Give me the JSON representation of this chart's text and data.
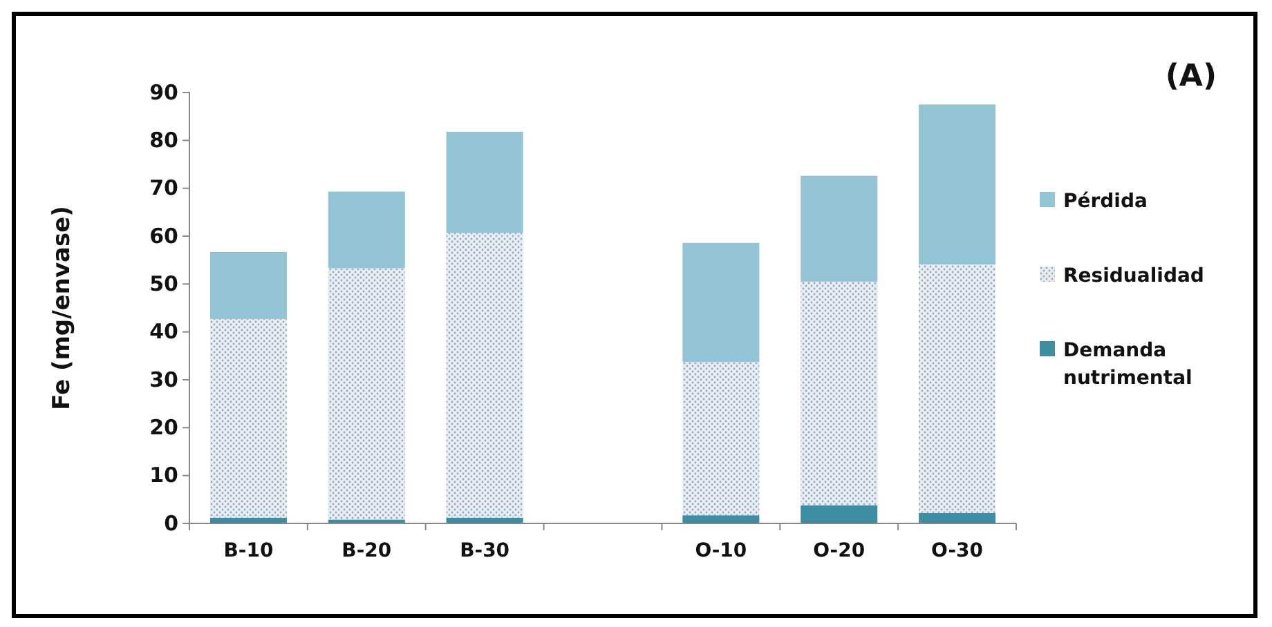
{
  "chart_data": {
    "type": "bar",
    "stacked": true,
    "ylabel": "Fe  (mg/envase)",
    "annotations": [
      "(A)"
    ],
    "categories": [
      "B-10",
      "B-20",
      "B-30",
      null,
      "O-10",
      "O-20",
      "O-30"
    ],
    "series": [
      {
        "name": "Demanda nutrimental",
        "color": "#3d8ea3",
        "values": [
          1.2,
          0.8,
          1.2,
          null,
          1.7,
          3.8,
          2.2
        ]
      },
      {
        "name": "Residualidad",
        "color": "#e6edf3",
        "values": [
          41.5,
          52.5,
          59.5,
          null,
          32,
          46.7,
          51.9
        ]
      },
      {
        "name": "Pérdida",
        "color": "#93c4d6",
        "values": [
          14,
          16,
          21.1,
          null,
          24.9,
          22.1,
          33.4
        ]
      }
    ],
    "ylim": [
      0,
      90
    ],
    "yticks": [
      0,
      10,
      20,
      30,
      40,
      50,
      60,
      70,
      80,
      90
    ],
    "grid": false,
    "legend": "right"
  }
}
